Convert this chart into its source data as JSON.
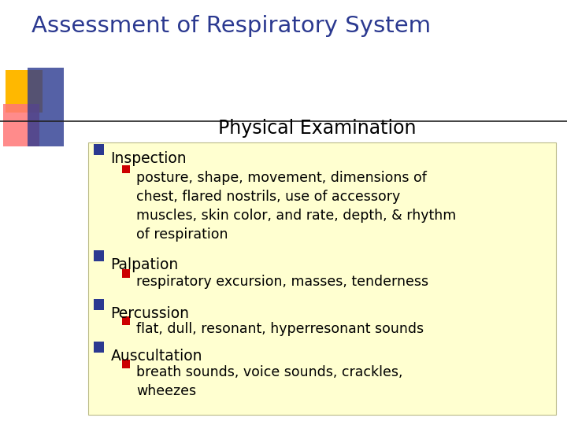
{
  "title": "Assessment of Respiratory System",
  "subtitle": "Physical Examination",
  "title_color": "#2B3990",
  "subtitle_color": "#000000",
  "bg_color": "#FFFFFF",
  "content_bg": "#FFFFD0",
  "bullet_color": "#2B3990",
  "sub_bullet_color": "#CC0000",
  "content_color": "#000000",
  "items": [
    {
      "level": 1,
      "text": "Inspection"
    },
    {
      "level": 2,
      "text": "posture, shape, movement, dimensions of\nchest, flared nostrils, use of accessory\nmuscles, skin color, and rate, depth, & rhythm\nof respiration"
    },
    {
      "level": 1,
      "text": "Palpation"
    },
    {
      "level": 2,
      "text": "respiratory excursion, masses, tenderness"
    },
    {
      "level": 1,
      "text": "Percussion"
    },
    {
      "level": 2,
      "text": "flat, dull, resonant, hyperresonant sounds"
    },
    {
      "level": 1,
      "text": "Auscultation"
    },
    {
      "level": 2,
      "text": "breath sounds, voice sounds, crackles,\nwheezes"
    }
  ],
  "figsize": [
    7.2,
    5.4
  ],
  "dpi": 100
}
